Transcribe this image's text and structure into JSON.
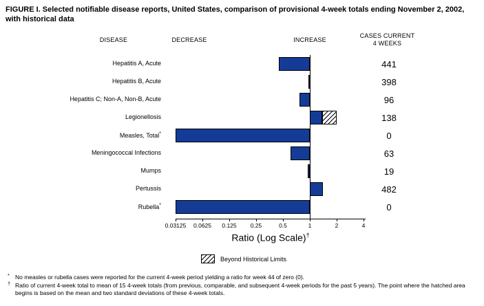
{
  "title": "FIGURE I. Selected notifiable disease reports, United States, comparison of provisional 4-week totals ending November 2, 2002, with historical data",
  "column_headers": {
    "disease": "DISEASE",
    "decrease": "DECREASE",
    "increase": "INCREASE",
    "cases_line1": "CASES CURRENT",
    "cases_line2": "4 WEEKS"
  },
  "chart_data": {
    "type": "bar",
    "orientation": "horizontal",
    "scale": "log2",
    "baseline_ratio": 1,
    "xlabel": "Ratio (Log Scale)",
    "xlabel_superscript": "†",
    "xlim": [
      0.03125,
      4
    ],
    "tick_values": [
      0.03125,
      0.0625,
      0.125,
      0.25,
      0.5,
      1,
      2,
      4
    ],
    "tick_labels": [
      "0.03125",
      "0.0625",
      "0.125",
      "0.25",
      "0.5",
      "1",
      "2",
      "4"
    ],
    "rows": [
      {
        "disease": "Hepatitis A, Acute",
        "superscript": "",
        "ratio": 0.45,
        "cases": "441",
        "beyond_historical_limits": false
      },
      {
        "disease": "Hepatitis B, Acute",
        "superscript": "",
        "ratio": 0.98,
        "cases": "398",
        "beyond_historical_limits": false
      },
      {
        "disease": "Hepatitis C; Non-A, Non-B, Acute",
        "superscript": "",
        "ratio": 0.77,
        "cases": "96",
        "beyond_historical_limits": false
      },
      {
        "disease": "Legionellosis",
        "superscript": "",
        "ratio": 1.38,
        "cases": "138",
        "beyond_historical_limits": true,
        "hatch_from": 1.38,
        "hatch_to": 2.0
      },
      {
        "disease": "Measles, Total",
        "superscript": "*",
        "ratio": 0,
        "bar_to_left_edge": true,
        "cases": "0",
        "beyond_historical_limits": false
      },
      {
        "disease": "Meningococcal Infections",
        "superscript": "",
        "ratio": 0.61,
        "cases": "63",
        "beyond_historical_limits": false
      },
      {
        "disease": "Mumps",
        "superscript": "",
        "ratio": 0.95,
        "cases": "19",
        "beyond_historical_limits": false
      },
      {
        "disease": "Pertussis",
        "superscript": "",
        "ratio": 1.4,
        "cases": "482",
        "beyond_historical_limits": false
      },
      {
        "disease": "Rubella",
        "superscript": "*",
        "ratio": 0,
        "bar_to_left_edge": true,
        "cases": "0",
        "beyond_historical_limits": false
      }
    ],
    "legend": {
      "swatch": "hatched",
      "label": "Beyond Historical Limits"
    },
    "grid": false,
    "legend_position": "bottom-center"
  },
  "footnotes": [
    {
      "marker": "*",
      "text": "No measles or rubella cases were reported for the current 4-week period yielding a ratio for week 44 of zero (0)."
    },
    {
      "marker": "†",
      "text": "Ratio of current 4-week total to mean of 15 4-week totals (from previous, comparable, and subsequent 4-week periods for the past 5 years). The point where the hatched area begins is based on the mean and two standard deviations of these 4-week totals."
    }
  ],
  "colors": {
    "bar_fill": "#143C96",
    "bar_outline": "#000000",
    "hatch_line": "#000000",
    "background": "#FFFFFF",
    "text": "#000000"
  }
}
